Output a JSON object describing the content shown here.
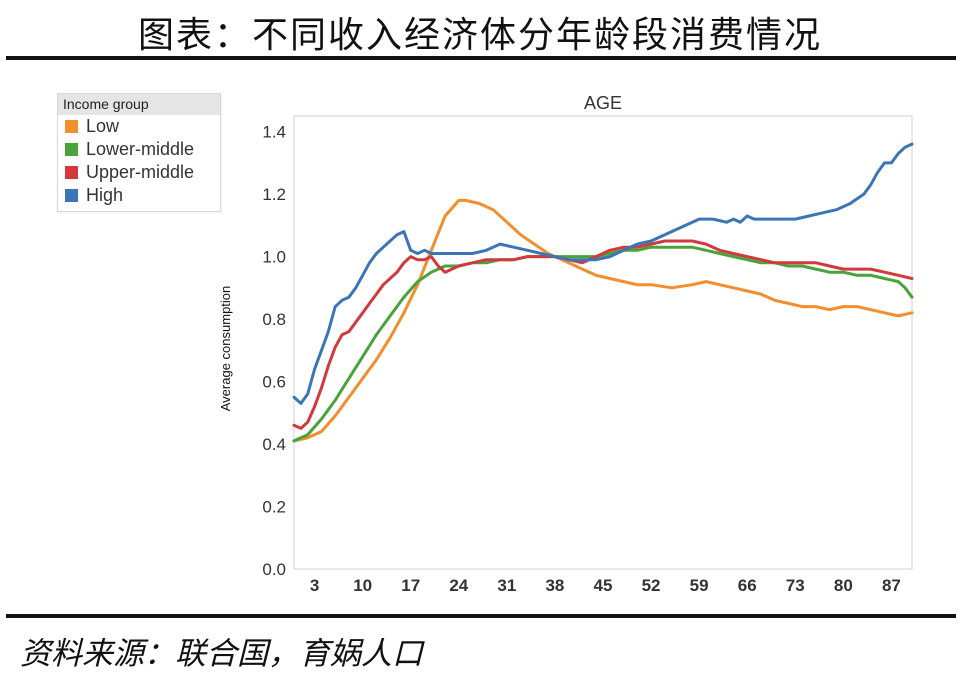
{
  "title": "图表：不同收入经济体分年龄段消费情况",
  "source": "资料来源：联合国，育娲人口",
  "colors": {
    "Low": "#f28e2b",
    "Lower-middle": "#4aa23b",
    "Upper-middle": "#d1393c",
    "High": "#3b75b5"
  },
  "chart_data": {
    "type": "line",
    "title": "AGE",
    "xlabel": "",
    "ylabel": "Average consumption",
    "xlim": [
      0,
      90
    ],
    "ylim": [
      0,
      1.45
    ],
    "x_ticks": [
      "3",
      "10",
      "17",
      "24",
      "31",
      "38",
      "45",
      "52",
      "59",
      "66",
      "73",
      "80",
      "87"
    ],
    "y_ticks": [
      "0.0",
      "0.2",
      "0.4",
      "0.6",
      "0.8",
      "1.0",
      "1.2",
      "1.4"
    ],
    "grid": false,
    "legend_title": "Income group",
    "legend_position": "top-left",
    "series": [
      {
        "name": "Low",
        "points": [
          [
            0,
            0.41
          ],
          [
            2,
            0.42
          ],
          [
            4,
            0.44
          ],
          [
            6,
            0.49
          ],
          [
            8,
            0.55
          ],
          [
            10,
            0.61
          ],
          [
            12,
            0.67
          ],
          [
            14,
            0.74
          ],
          [
            16,
            0.82
          ],
          [
            18,
            0.91
          ],
          [
            20,
            1.02
          ],
          [
            22,
            1.13
          ],
          [
            24,
            1.18
          ],
          [
            25,
            1.18
          ],
          [
            27,
            1.17
          ],
          [
            29,
            1.15
          ],
          [
            31,
            1.11
          ],
          [
            33,
            1.07
          ],
          [
            35,
            1.04
          ],
          [
            37,
            1.01
          ],
          [
            38,
            1.0
          ],
          [
            40,
            0.98
          ],
          [
            42,
            0.96
          ],
          [
            44,
            0.94
          ],
          [
            46,
            0.93
          ],
          [
            48,
            0.92
          ],
          [
            50,
            0.91
          ],
          [
            52,
            0.91
          ],
          [
            55,
            0.9
          ],
          [
            58,
            0.91
          ],
          [
            60,
            0.92
          ],
          [
            62,
            0.91
          ],
          [
            64,
            0.9
          ],
          [
            66,
            0.89
          ],
          [
            68,
            0.88
          ],
          [
            70,
            0.86
          ],
          [
            72,
            0.85
          ],
          [
            74,
            0.84
          ],
          [
            76,
            0.84
          ],
          [
            78,
            0.83
          ],
          [
            80,
            0.84
          ],
          [
            82,
            0.84
          ],
          [
            84,
            0.83
          ],
          [
            86,
            0.82
          ],
          [
            88,
            0.81
          ],
          [
            90,
            0.82
          ]
        ]
      },
      {
        "name": "Lower-middle",
        "points": [
          [
            0,
            0.41
          ],
          [
            2,
            0.43
          ],
          [
            4,
            0.48
          ],
          [
            6,
            0.54
          ],
          [
            8,
            0.61
          ],
          [
            10,
            0.68
          ],
          [
            12,
            0.75
          ],
          [
            14,
            0.81
          ],
          [
            16,
            0.87
          ],
          [
            18,
            0.92
          ],
          [
            20,
            0.95
          ],
          [
            22,
            0.97
          ],
          [
            24,
            0.97
          ],
          [
            26,
            0.98
          ],
          [
            28,
            0.98
          ],
          [
            30,
            0.99
          ],
          [
            32,
            0.99
          ],
          [
            34,
            1.0
          ],
          [
            36,
            1.0
          ],
          [
            38,
            1.0
          ],
          [
            40,
            1.0
          ],
          [
            42,
            1.0
          ],
          [
            44,
            1.0
          ],
          [
            46,
            1.01
          ],
          [
            48,
            1.02
          ],
          [
            50,
            1.02
          ],
          [
            52,
            1.03
          ],
          [
            54,
            1.03
          ],
          [
            56,
            1.03
          ],
          [
            58,
            1.03
          ],
          [
            60,
            1.02
          ],
          [
            62,
            1.01
          ],
          [
            64,
            1.0
          ],
          [
            66,
            0.99
          ],
          [
            68,
            0.98
          ],
          [
            70,
            0.98
          ],
          [
            72,
            0.97
          ],
          [
            74,
            0.97
          ],
          [
            76,
            0.96
          ],
          [
            78,
            0.95
          ],
          [
            80,
            0.95
          ],
          [
            82,
            0.94
          ],
          [
            84,
            0.94
          ],
          [
            86,
            0.93
          ],
          [
            88,
            0.92
          ],
          [
            89,
            0.9
          ],
          [
            90,
            0.87
          ]
        ]
      },
      {
        "name": "Upper-middle",
        "points": [
          [
            0,
            0.46
          ],
          [
            1,
            0.45
          ],
          [
            2,
            0.47
          ],
          [
            3,
            0.52
          ],
          [
            4,
            0.58
          ],
          [
            5,
            0.65
          ],
          [
            6,
            0.71
          ],
          [
            7,
            0.75
          ],
          [
            8,
            0.76
          ],
          [
            9,
            0.79
          ],
          [
            10,
            0.82
          ],
          [
            11,
            0.85
          ],
          [
            12,
            0.88
          ],
          [
            13,
            0.91
          ],
          [
            14,
            0.93
          ],
          [
            15,
            0.95
          ],
          [
            16,
            0.98
          ],
          [
            17,
            1.0
          ],
          [
            18,
            0.99
          ],
          [
            19,
            0.99
          ],
          [
            20,
            1.0
          ],
          [
            21,
            0.97
          ],
          [
            22,
            0.95
          ],
          [
            23,
            0.96
          ],
          [
            24,
            0.97
          ],
          [
            26,
            0.98
          ],
          [
            28,
            0.99
          ],
          [
            30,
            0.99
          ],
          [
            32,
            0.99
          ],
          [
            34,
            1.0
          ],
          [
            36,
            1.0
          ],
          [
            38,
            1.0
          ],
          [
            40,
            0.99
          ],
          [
            42,
            0.98
          ],
          [
            44,
            1.0
          ],
          [
            46,
            1.02
          ],
          [
            48,
            1.03
          ],
          [
            50,
            1.03
          ],
          [
            52,
            1.04
          ],
          [
            54,
            1.05
          ],
          [
            56,
            1.05
          ],
          [
            58,
            1.05
          ],
          [
            60,
            1.04
          ],
          [
            62,
            1.02
          ],
          [
            64,
            1.01
          ],
          [
            66,
            1.0
          ],
          [
            68,
            0.99
          ],
          [
            70,
            0.98
          ],
          [
            72,
            0.98
          ],
          [
            74,
            0.98
          ],
          [
            76,
            0.98
          ],
          [
            78,
            0.97
          ],
          [
            80,
            0.96
          ],
          [
            82,
            0.96
          ],
          [
            84,
            0.96
          ],
          [
            86,
            0.95
          ],
          [
            88,
            0.94
          ],
          [
            90,
            0.93
          ]
        ]
      },
      {
        "name": "High",
        "points": [
          [
            0,
            0.55
          ],
          [
            1,
            0.53
          ],
          [
            2,
            0.56
          ],
          [
            3,
            0.64
          ],
          [
            4,
            0.7
          ],
          [
            5,
            0.76
          ],
          [
            6,
            0.84
          ],
          [
            7,
            0.86
          ],
          [
            8,
            0.87
          ],
          [
            9,
            0.9
          ],
          [
            10,
            0.94
          ],
          [
            11,
            0.98
          ],
          [
            12,
            1.01
          ],
          [
            13,
            1.03
          ],
          [
            14,
            1.05
          ],
          [
            15,
            1.07
          ],
          [
            16,
            1.08
          ],
          [
            17,
            1.02
          ],
          [
            18,
            1.01
          ],
          [
            19,
            1.02
          ],
          [
            20,
            1.01
          ],
          [
            22,
            1.01
          ],
          [
            24,
            1.01
          ],
          [
            26,
            1.01
          ],
          [
            28,
            1.02
          ],
          [
            30,
            1.04
          ],
          [
            32,
            1.03
          ],
          [
            34,
            1.02
          ],
          [
            36,
            1.01
          ],
          [
            38,
            1.0
          ],
          [
            40,
            0.99
          ],
          [
            42,
            0.99
          ],
          [
            44,
            0.99
          ],
          [
            46,
            1.0
          ],
          [
            48,
            1.02
          ],
          [
            50,
            1.04
          ],
          [
            52,
            1.05
          ],
          [
            54,
            1.07
          ],
          [
            56,
            1.09
          ],
          [
            58,
            1.11
          ],
          [
            59,
            1.12
          ],
          [
            61,
            1.12
          ],
          [
            63,
            1.11
          ],
          [
            64,
            1.12
          ],
          [
            65,
            1.11
          ],
          [
            66,
            1.13
          ],
          [
            67,
            1.12
          ],
          [
            69,
            1.12
          ],
          [
            71,
            1.12
          ],
          [
            73,
            1.12
          ],
          [
            75,
            1.13
          ],
          [
            77,
            1.14
          ],
          [
            79,
            1.15
          ],
          [
            81,
            1.17
          ],
          [
            83,
            1.2
          ],
          [
            84,
            1.23
          ],
          [
            85,
            1.27
          ],
          [
            86,
            1.3
          ],
          [
            87,
            1.3
          ],
          [
            88,
            1.33
          ],
          [
            89,
            1.35
          ],
          [
            90,
            1.36
          ]
        ]
      }
    ]
  }
}
